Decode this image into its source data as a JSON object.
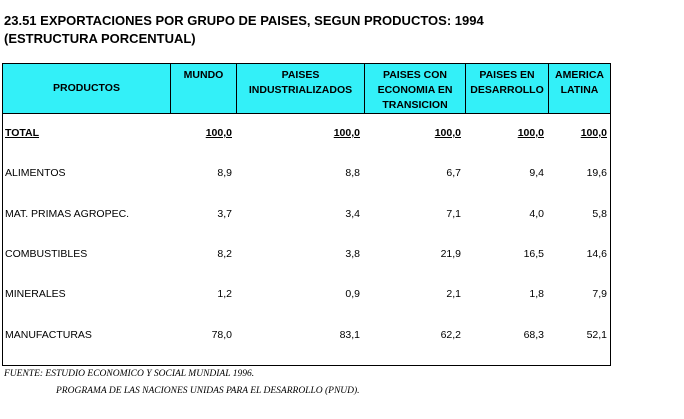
{
  "title": [
    "23.51  EXPORTACIONES POR GRUPO DE PAISES, SEGUN PRODUCTOS: 1994",
    "(ESTRUCTURA PORCENTUAL)"
  ],
  "table": {
    "columns": [
      "PRODUCTOS",
      "MUNDO",
      "PAISES INDUSTRIALIZADOS",
      "PAISES CON ECONOMIA EN TRANSICION",
      "PAISES EN DESARROLLO",
      "AMERICA LATINA"
    ],
    "rows": [
      [
        "TOTAL",
        "100,0",
        "100,0",
        "100,0",
        "100,0",
        "100,0"
      ],
      [
        "ALIMENTOS",
        "8,9",
        "8,8",
        "6,7",
        "9,4",
        "19,6"
      ],
      [
        "MAT. PRIMAS AGROPEC.",
        "3,7",
        "3,4",
        "7,1",
        "4,0",
        "5,8"
      ],
      [
        "COMBUSTIBLES",
        "8,2",
        "3,8",
        "21,9",
        "16,5",
        "14,6"
      ],
      [
        "MINERALES",
        "1,2",
        "0,9",
        "2,1",
        "1,8",
        "7,9"
      ],
      [
        "MANUFACTURAS",
        "78,0",
        "83,1",
        "62,2",
        "68,3",
        "52,1"
      ]
    ]
  },
  "footnotes": [
    "FUENTE: ESTUDIO ECONOMICO Y SOCIAL MUNDIAL 1996.",
    "PROGRAMA DE LAS NACIONES UNIDAS PARA EL DESARROLLO (PNUD)."
  ]
}
